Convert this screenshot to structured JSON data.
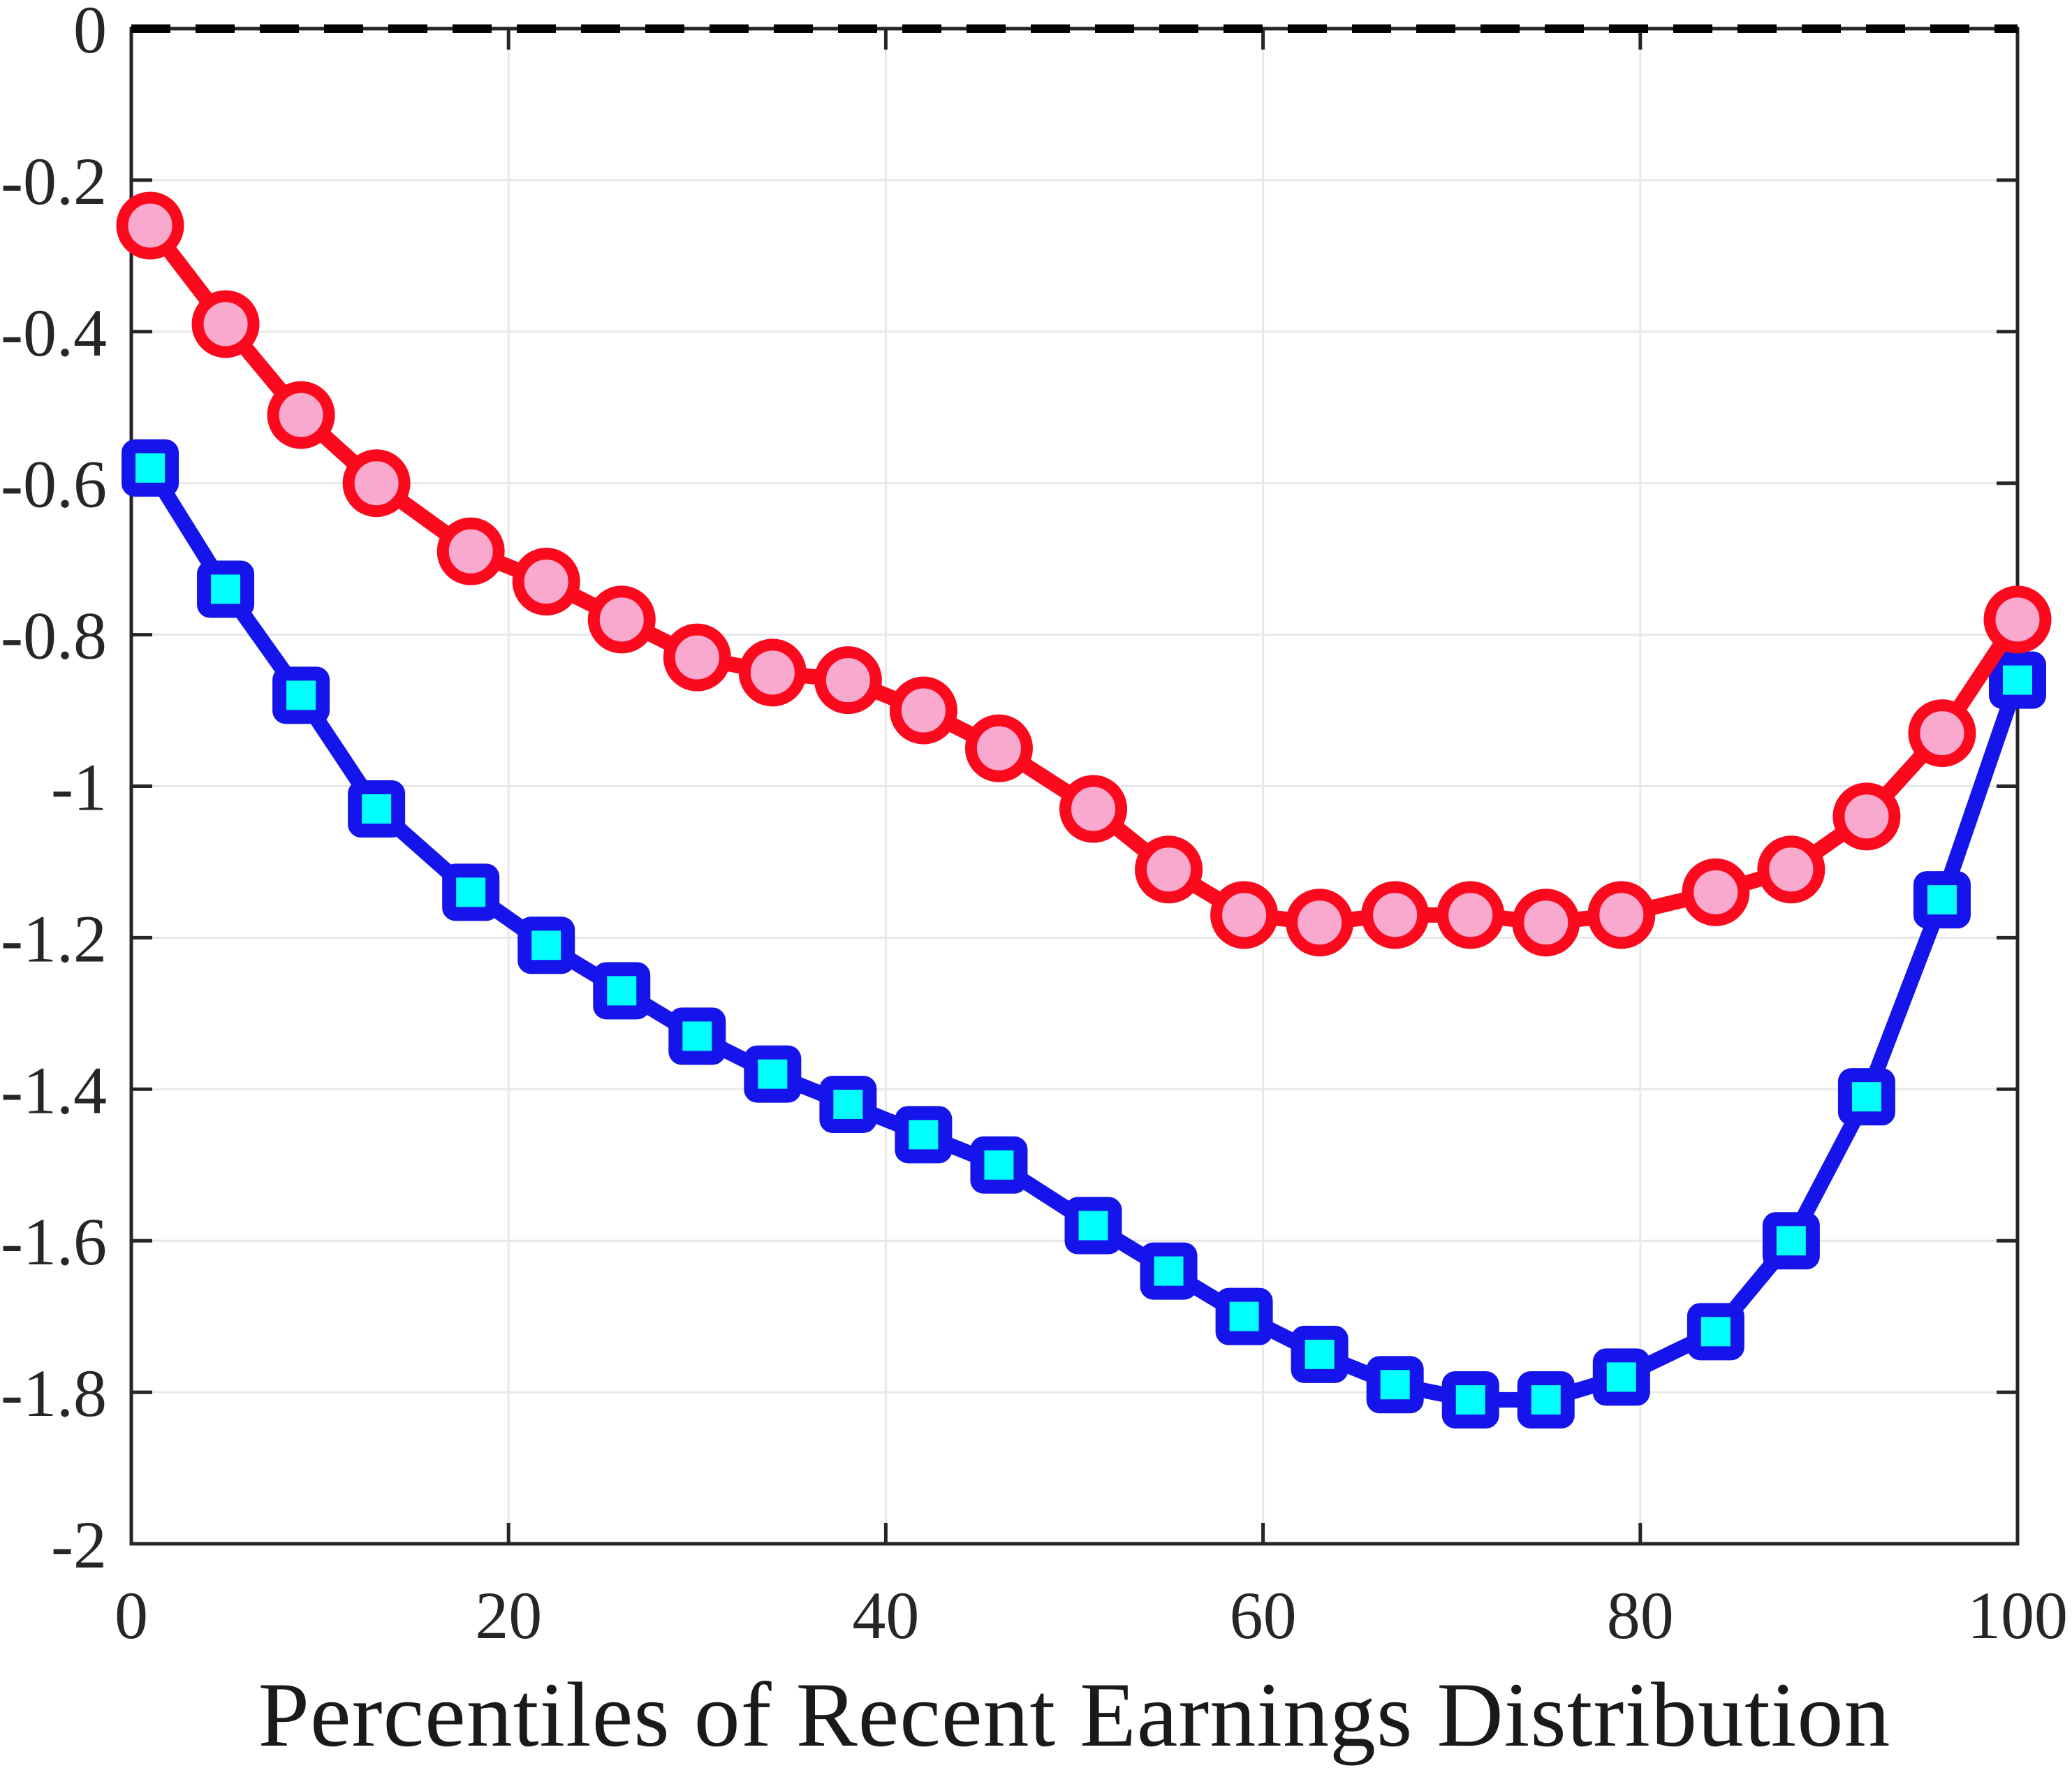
{
  "chart_data": {
    "type": "line",
    "title": "",
    "xlabel": "Percentiles of Recent Earnings Distribution",
    "ylabel": "",
    "xlim": [
      0,
      100
    ],
    "ylim": [
      -2,
      0
    ],
    "grid": true,
    "legend": "none",
    "x_ticks": [
      0,
      20,
      40,
      60,
      80,
      100
    ],
    "x_tick_labels": [
      "0",
      "20",
      "40",
      "60",
      "80",
      "100"
    ],
    "y_ticks": [
      0,
      -0.2,
      -0.4,
      -0.6,
      -0.8,
      -1,
      -1.2,
      -1.4,
      -1.6,
      -1.8,
      -2
    ],
    "y_tick_labels": [
      "0",
      "-0.2",
      "-0.4",
      "-0.6",
      "-0.8",
      "-1",
      "-1.2",
      "-1.4",
      "-1.6",
      "-1.8",
      "-2"
    ],
    "zero_line": {
      "y": 0,
      "style": "dashed",
      "color": "#000000"
    },
    "x": [
      1,
      5,
      9,
      13,
      18,
      22,
      26,
      30,
      34,
      38,
      42,
      46,
      51,
      55,
      59,
      63,
      67,
      71,
      75,
      79,
      84,
      88,
      92,
      96,
      100
    ],
    "series": [
      {
        "name": "blue-squares",
        "marker": "square",
        "line_color": "#1414EB",
        "marker_fill": "#00FFFF",
        "values": [
          -0.58,
          -0.74,
          -0.88,
          -1.03,
          -1.14,
          -1.21,
          -1.27,
          -1.33,
          -1.38,
          -1.42,
          -1.46,
          -1.5,
          -1.58,
          -1.64,
          -1.7,
          -1.75,
          -1.79,
          -1.81,
          -1.81,
          -1.78,
          -1.72,
          -1.6,
          -1.41,
          -1.15,
          -0.86
        ]
      },
      {
        "name": "red-circles",
        "marker": "circle",
        "line_color": "#FA0A1C",
        "marker_fill": "#F9A8CE",
        "values": [
          -0.26,
          -0.39,
          -0.51,
          -0.6,
          -0.69,
          -0.73,
          -0.78,
          -0.83,
          -0.85,
          -0.86,
          -0.9,
          -0.95,
          -1.03,
          -1.11,
          -1.17,
          -1.18,
          -1.17,
          -1.17,
          -1.18,
          -1.17,
          -1.14,
          -1.11,
          -1.04,
          -0.93,
          -0.78
        ]
      }
    ],
    "colors": {
      "grid": "#E8E8E8",
      "axis": "#262626",
      "tick_label": "#262626",
      "background": "#FFFFFF"
    }
  }
}
